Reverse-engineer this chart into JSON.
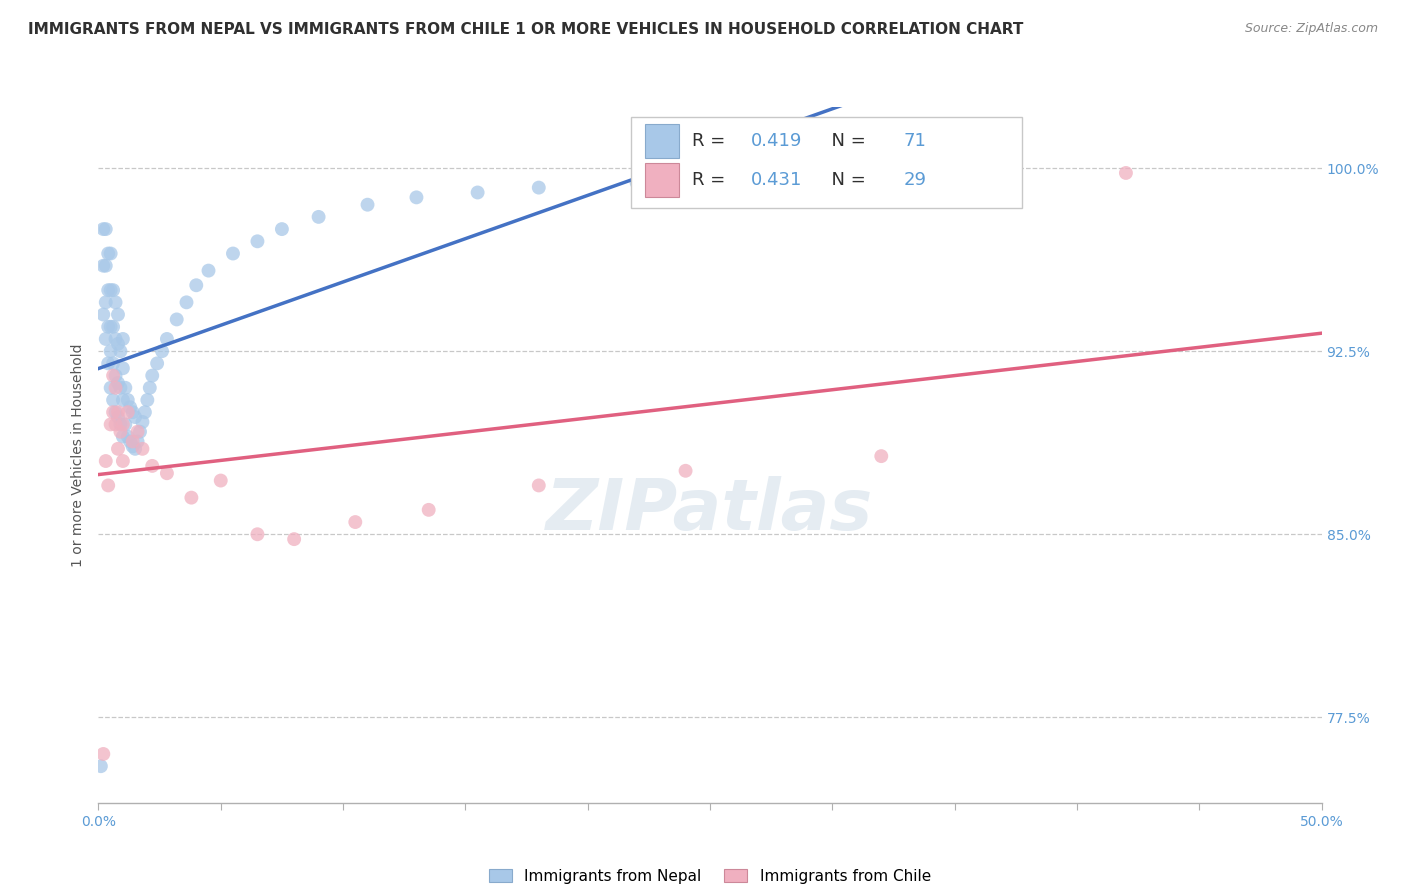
{
  "title": "IMMIGRANTS FROM NEPAL VS IMMIGRANTS FROM CHILE 1 OR MORE VEHICLES IN HOUSEHOLD CORRELATION CHART",
  "source": "Source: ZipAtlas.com",
  "ylabel": "1 or more Vehicles in Household",
  "xlim": [
    0.0,
    0.5
  ],
  "ylim": [
    0.74,
    1.025
  ],
  "nepal_color": "#a8c8e8",
  "chile_color": "#f0b0c0",
  "nepal_line_color": "#4472c4",
  "chile_line_color": "#e06080",
  "nepal_R": "0.419",
  "nepal_N": "71",
  "chile_R": "0.431",
  "chile_N": "29",
  "nepal_scatter_x": [
    0.001,
    0.002,
    0.002,
    0.002,
    0.003,
    0.003,
    0.003,
    0.003,
    0.004,
    0.004,
    0.004,
    0.004,
    0.005,
    0.005,
    0.005,
    0.005,
    0.005,
    0.006,
    0.006,
    0.006,
    0.006,
    0.007,
    0.007,
    0.007,
    0.007,
    0.008,
    0.008,
    0.008,
    0.008,
    0.009,
    0.009,
    0.009,
    0.01,
    0.01,
    0.01,
    0.01,
    0.011,
    0.011,
    0.012,
    0.012,
    0.013,
    0.013,
    0.014,
    0.014,
    0.015,
    0.015,
    0.016,
    0.017,
    0.018,
    0.019,
    0.02,
    0.021,
    0.022,
    0.024,
    0.026,
    0.028,
    0.032,
    0.036,
    0.04,
    0.045,
    0.055,
    0.065,
    0.075,
    0.09,
    0.11,
    0.13,
    0.155,
    0.18,
    0.22,
    0.27,
    0.32
  ],
  "nepal_scatter_y": [
    0.755,
    0.94,
    0.96,
    0.975,
    0.93,
    0.945,
    0.96,
    0.975,
    0.92,
    0.935,
    0.95,
    0.965,
    0.91,
    0.925,
    0.935,
    0.95,
    0.965,
    0.905,
    0.92,
    0.935,
    0.95,
    0.9,
    0.915,
    0.93,
    0.945,
    0.898,
    0.912,
    0.928,
    0.94,
    0.895,
    0.91,
    0.925,
    0.89,
    0.905,
    0.918,
    0.93,
    0.895,
    0.91,
    0.89,
    0.905,
    0.888,
    0.902,
    0.886,
    0.9,
    0.885,
    0.898,
    0.888,
    0.892,
    0.896,
    0.9,
    0.905,
    0.91,
    0.915,
    0.92,
    0.925,
    0.93,
    0.938,
    0.945,
    0.952,
    0.958,
    0.965,
    0.97,
    0.975,
    0.98,
    0.985,
    0.988,
    0.99,
    0.992,
    0.994,
    0.996,
    0.998
  ],
  "chile_scatter_x": [
    0.002,
    0.003,
    0.004,
    0.005,
    0.006,
    0.006,
    0.007,
    0.007,
    0.008,
    0.008,
    0.009,
    0.01,
    0.01,
    0.012,
    0.014,
    0.016,
    0.018,
    0.022,
    0.028,
    0.038,
    0.05,
    0.065,
    0.08,
    0.105,
    0.135,
    0.18,
    0.24,
    0.32,
    0.42
  ],
  "chile_scatter_y": [
    0.76,
    0.88,
    0.87,
    0.895,
    0.9,
    0.915,
    0.895,
    0.91,
    0.885,
    0.9,
    0.892,
    0.88,
    0.895,
    0.9,
    0.888,
    0.892,
    0.885,
    0.878,
    0.875,
    0.865,
    0.872,
    0.85,
    0.848,
    0.855,
    0.86,
    0.87,
    0.876,
    0.882,
    0.998
  ],
  "ytick_positions": [
    0.775,
    0.85,
    0.925,
    1.0
  ],
  "ytick_labels": [
    "77.5%",
    "85.0%",
    "92.5%",
    "100.0%"
  ],
  "xtick_positions": [
    0.0,
    0.05,
    0.1,
    0.15,
    0.2,
    0.25,
    0.3,
    0.35,
    0.4,
    0.45,
    0.5
  ],
  "background_color": "#ffffff",
  "grid_color": "#c8c8c8",
  "title_fontsize": 11,
  "tick_fontsize": 10,
  "source_fontsize": 9,
  "legend_fontsize": 13,
  "marker_size": 100
}
